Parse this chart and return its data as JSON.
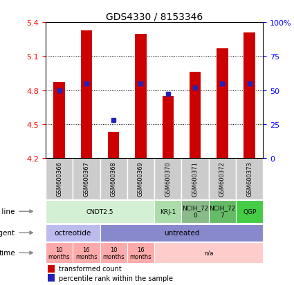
{
  "title": "GDS4330 / 8153346",
  "samples": [
    "GSM600366",
    "GSM600367",
    "GSM600368",
    "GSM600369",
    "GSM600370",
    "GSM600371",
    "GSM600372",
    "GSM600373"
  ],
  "transformed_counts": [
    4.87,
    5.33,
    4.43,
    5.3,
    4.75,
    4.96,
    5.17,
    5.31
  ],
  "percentile_ranks": [
    50,
    55,
    28,
    55,
    47,
    52,
    55,
    55
  ],
  "ylim_left": [
    4.2,
    5.4
  ],
  "ylim_right": [
    0,
    100
  ],
  "left_ticks": [
    4.2,
    4.5,
    4.8,
    5.1,
    5.4
  ],
  "right_ticks": [
    0,
    25,
    50,
    75,
    100
  ],
  "right_tick_labels": [
    "0",
    "25",
    "50",
    "75",
    "100%"
  ],
  "bar_color": "#cc0000",
  "dot_color": "#2222bb",
  "bar_bottom": 4.2,
  "cell_groups": [
    {
      "label": "CNDT2.5",
      "start": 0,
      "end": 3,
      "color": "#d4f0d4"
    },
    {
      "label": "KRJ-1",
      "start": 4,
      "end": 4,
      "color": "#aaddaa"
    },
    {
      "label": "NCIH_72\n0",
      "start": 5,
      "end": 5,
      "color": "#88bb88"
    },
    {
      "label": "NCIH_72\n7",
      "start": 6,
      "end": 6,
      "color": "#66bb66"
    },
    {
      "label": "QGP",
      "start": 7,
      "end": 7,
      "color": "#44cc44"
    }
  ],
  "agent_groups": [
    {
      "label": "octreotide",
      "start": 0,
      "end": 1,
      "color": "#bbbbee"
    },
    {
      "label": "untreated",
      "start": 2,
      "end": 7,
      "color": "#8888cc"
    }
  ],
  "time_groups": [
    {
      "label": "10\nmonths",
      "start": 0,
      "end": 0,
      "color": "#ffaaaa"
    },
    {
      "label": "16\nmonths",
      "start": 1,
      "end": 1,
      "color": "#ffaaaa"
    },
    {
      "label": "10\nmonths",
      "start": 2,
      "end": 2,
      "color": "#ffaaaa"
    },
    {
      "label": "16\nmonths",
      "start": 3,
      "end": 3,
      "color": "#ffaaaa"
    },
    {
      "label": "n/a",
      "start": 4,
      "end": 7,
      "color": "#ffcccc"
    }
  ]
}
